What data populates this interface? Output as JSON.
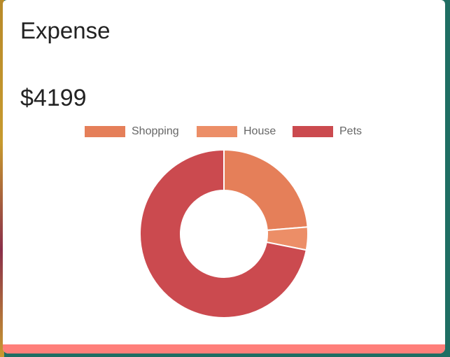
{
  "card": {
    "title": "Expense",
    "amount": "$4199"
  },
  "chart_data": {
    "type": "pie",
    "variant": "doughnut",
    "labels": [
      "Shopping",
      "House",
      "Pets"
    ],
    "values": [
      23.7,
      4.4,
      71.9
    ],
    "colors": [
      "#e57f59",
      "#ec8e67",
      "#cb4a4f"
    ],
    "legend_placement": "top"
  },
  "colors": {
    "accent_bar": "#ff7f7a",
    "background": "#1f6e63",
    "card": "#ffffff"
  }
}
